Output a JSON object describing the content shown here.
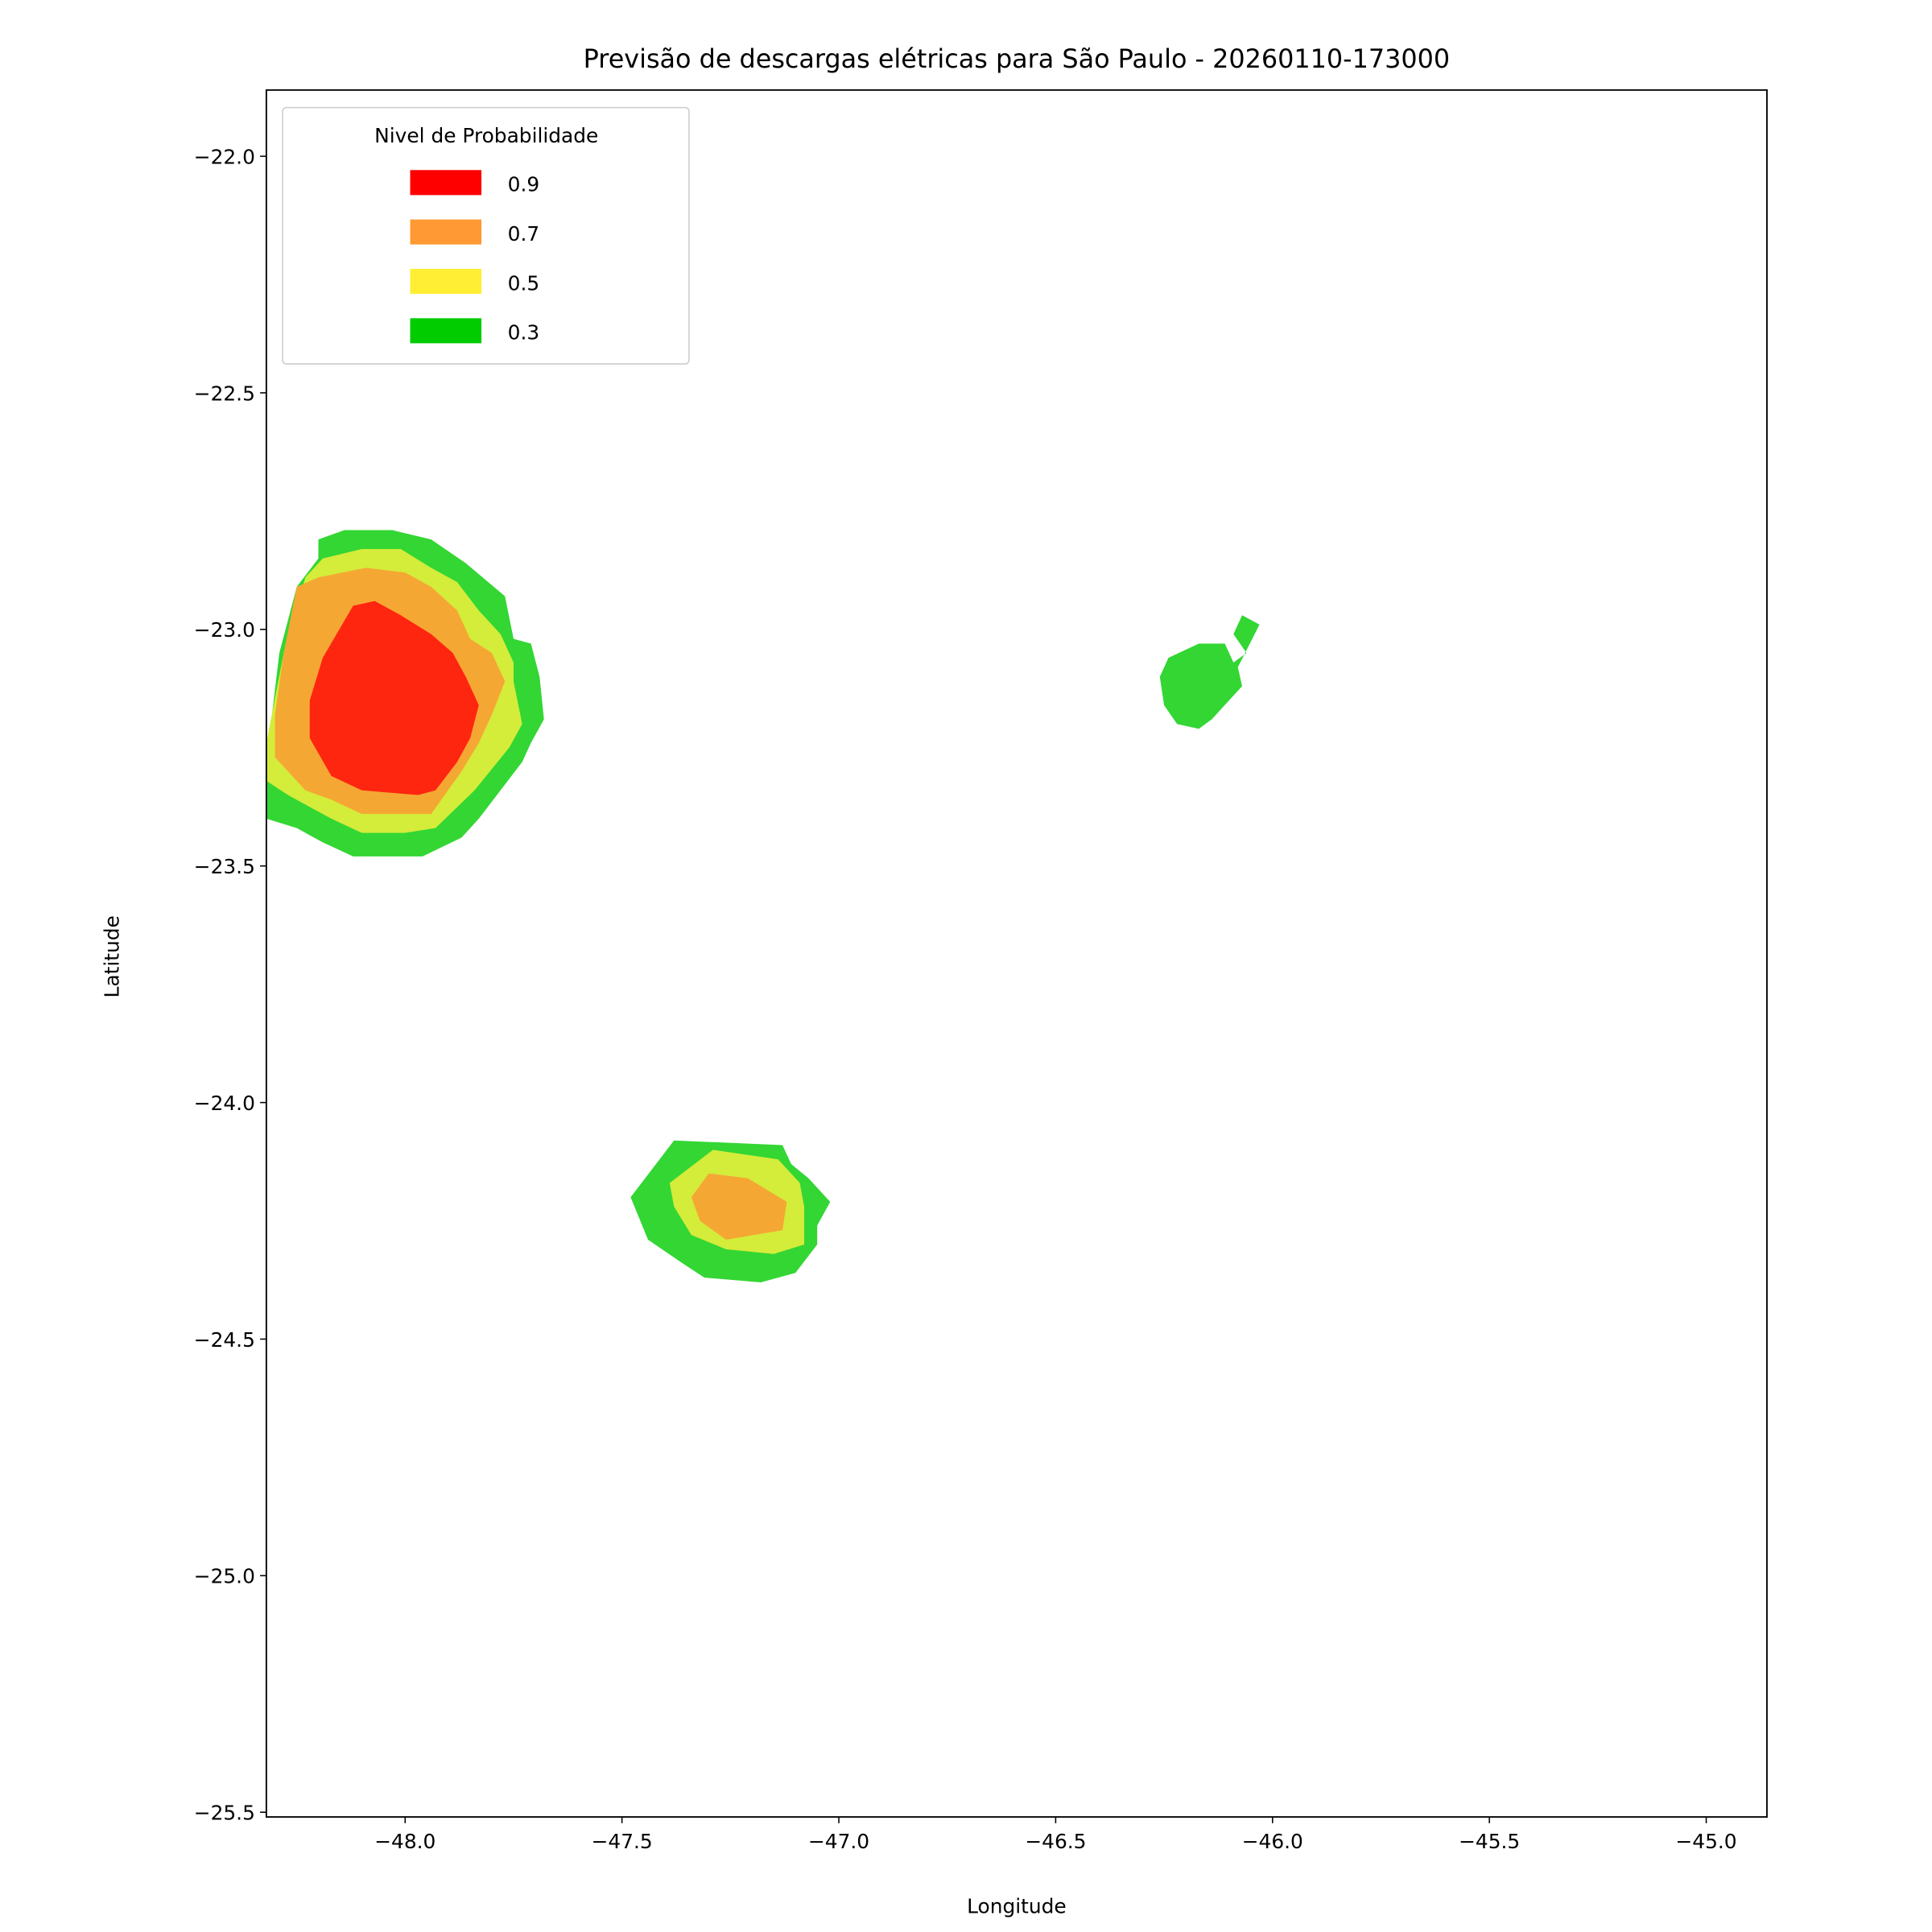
{
  "chart_data": {
    "type": "contour-filled",
    "title": "Previsão de descargas elétricas para São Paulo - 20260110-173000",
    "xlabel": "Longitude",
    "ylabel": "Latitude",
    "xlim": [
      -48.32,
      -44.86
    ],
    "ylim": [
      -25.51,
      -21.86
    ],
    "xticks": [
      -48.0,
      -47.5,
      -47.0,
      -46.5,
      -46.0,
      -45.5,
      -45.0
    ],
    "xtick_labels": [
      "−48.0",
      "−47.5",
      "−47.0",
      "−46.5",
      "−46.0",
      "−45.5",
      "−45.0"
    ],
    "yticks": [
      -22.0,
      -22.5,
      -23.0,
      -23.5,
      -24.0,
      -24.5,
      -25.0,
      -25.5
    ],
    "ytick_labels": [
      "−22.0",
      "−22.5",
      "−23.0",
      "−23.5",
      "−24.0",
      "−24.5",
      "−25.0",
      "−25.5"
    ],
    "grid": false,
    "legend": {
      "title": "Nivel de Probabilidade",
      "placement": "upper-left",
      "entries": [
        {
          "label": "0.9",
          "color": "#ff0000"
        },
        {
          "label": "0.7",
          "color": "#ff9933"
        },
        {
          "label": "0.5",
          "color": "#ffee33"
        },
        {
          "label": "0.3",
          "color": "#00cc00"
        }
      ]
    },
    "level_fill_colors": {
      "0.3": "#33d633",
      "0.5": "#d4ec3a",
      "0.7": "#f5a733",
      "0.9": "#ff2610"
    },
    "regions": [
      {
        "level": "0.3",
        "polygon": [
          [
            -48.2,
            -22.81
          ],
          [
            -48.14,
            -22.79
          ],
          [
            -48.03,
            -22.79
          ],
          [
            -47.94,
            -22.81
          ],
          [
            -47.86,
            -22.86
          ],
          [
            -47.77,
            -22.93
          ],
          [
            -47.75,
            -23.02
          ],
          [
            -47.71,
            -23.03
          ],
          [
            -47.69,
            -23.1
          ],
          [
            -47.68,
            -23.19
          ],
          [
            -47.71,
            -23.24
          ],
          [
            -47.73,
            -23.28
          ],
          [
            -47.83,
            -23.4
          ],
          [
            -47.87,
            -23.44
          ],
          [
            -47.96,
            -23.48
          ],
          [
            -48.12,
            -23.48
          ],
          [
            -48.19,
            -23.45
          ],
          [
            -48.25,
            -23.42
          ],
          [
            -48.32,
            -23.4
          ],
          [
            -48.32,
            -23.28
          ],
          [
            -48.29,
            -23.05
          ],
          [
            -48.25,
            -22.91
          ],
          [
            -48.2,
            -22.85
          ]
        ]
      },
      {
        "level": "0.5",
        "polygon": [
          [
            -48.23,
            -22.89
          ],
          [
            -48.19,
            -22.85
          ],
          [
            -48.1,
            -22.83
          ],
          [
            -48.01,
            -22.83
          ],
          [
            -47.94,
            -22.87
          ],
          [
            -47.88,
            -22.9
          ],
          [
            -47.83,
            -22.96
          ],
          [
            -47.78,
            -23.01
          ],
          [
            -47.75,
            -23.07
          ],
          [
            -47.75,
            -23.11
          ],
          [
            -47.73,
            -23.2
          ],
          [
            -47.76,
            -23.25
          ],
          [
            -47.84,
            -23.34
          ],
          [
            -47.93,
            -23.42
          ],
          [
            -48.0,
            -23.43
          ],
          [
            -48.1,
            -23.43
          ],
          [
            -48.17,
            -23.4
          ],
          [
            -48.27,
            -23.35
          ],
          [
            -48.32,
            -23.32
          ],
          [
            -48.32,
            -23.24
          ],
          [
            -48.28,
            -23.05
          ]
        ]
      },
      {
        "level": "0.7",
        "polygon": [
          [
            -48.25,
            -22.91
          ],
          [
            -48.2,
            -22.89
          ],
          [
            -48.09,
            -22.87
          ],
          [
            -48.0,
            -22.88
          ],
          [
            -47.94,
            -22.91
          ],
          [
            -47.88,
            -22.96
          ],
          [
            -47.85,
            -23.02
          ],
          [
            -47.8,
            -23.05
          ],
          [
            -47.77,
            -23.11
          ],
          [
            -47.8,
            -23.18
          ],
          [
            -47.83,
            -23.24
          ],
          [
            -47.87,
            -23.3
          ],
          [
            -47.94,
            -23.39
          ],
          [
            -48.1,
            -23.39
          ],
          [
            -48.17,
            -23.36
          ],
          [
            -48.23,
            -23.34
          ],
          [
            -48.3,
            -23.27
          ],
          [
            -48.3,
            -23.18
          ],
          [
            -48.28,
            -23.05
          ]
        ]
      },
      {
        "level": "0.9",
        "polygon": [
          [
            -48.19,
            -23.06
          ],
          [
            -48.12,
            -22.95
          ],
          [
            -48.07,
            -22.94
          ],
          [
            -48.01,
            -22.97
          ],
          [
            -47.94,
            -23.01
          ],
          [
            -47.89,
            -23.05
          ],
          [
            -47.86,
            -23.1
          ],
          [
            -47.83,
            -23.16
          ],
          [
            -47.85,
            -23.23
          ],
          [
            -47.88,
            -23.28
          ],
          [
            -47.93,
            -23.34
          ],
          [
            -47.97,
            -23.35
          ],
          [
            -48.1,
            -23.34
          ],
          [
            -48.17,
            -23.31
          ],
          [
            -48.22,
            -23.23
          ],
          [
            -48.22,
            -23.15
          ]
        ]
      },
      {
        "level": "0.3",
        "polygon": [
          [
            -47.48,
            -24.2
          ],
          [
            -47.38,
            -24.08
          ],
          [
            -47.13,
            -24.09
          ],
          [
            -47.11,
            -24.13
          ],
          [
            -47.07,
            -24.16
          ],
          [
            -47.02,
            -24.21
          ],
          [
            -47.05,
            -24.26
          ],
          [
            -47.05,
            -24.3
          ],
          [
            -47.1,
            -24.36
          ],
          [
            -47.18,
            -24.38
          ],
          [
            -47.31,
            -24.37
          ],
          [
            -47.36,
            -24.34
          ],
          [
            -47.44,
            -24.29
          ]
        ]
      },
      {
        "level": "0.5",
        "polygon": [
          [
            -47.39,
            -24.17
          ],
          [
            -47.29,
            -24.1
          ],
          [
            -47.14,
            -24.12
          ],
          [
            -47.09,
            -24.17
          ],
          [
            -47.08,
            -24.22
          ],
          [
            -47.08,
            -24.3
          ],
          [
            -47.15,
            -24.32
          ],
          [
            -47.26,
            -24.31
          ],
          [
            -47.34,
            -24.28
          ],
          [
            -47.38,
            -24.22
          ]
        ]
      },
      {
        "level": "0.7",
        "polygon": [
          [
            -47.34,
            -24.2
          ],
          [
            -47.3,
            -24.15
          ],
          [
            -47.21,
            -24.16
          ],
          [
            -47.12,
            -24.21
          ],
          [
            -47.13,
            -24.27
          ],
          [
            -47.26,
            -24.29
          ],
          [
            -47.32,
            -24.25
          ]
        ]
      },
      {
        "level": "0.3",
        "polygon": [
          [
            -46.26,
            -23.1
          ],
          [
            -46.24,
            -23.06
          ],
          [
            -46.17,
            -23.03
          ],
          [
            -46.11,
            -23.03
          ],
          [
            -46.09,
            -23.07
          ],
          [
            -46.06,
            -23.05
          ],
          [
            -46.09,
            -23.01
          ],
          [
            -46.07,
            -22.97
          ],
          [
            -46.03,
            -22.99
          ],
          [
            -46.08,
            -23.08
          ],
          [
            -46.07,
            -23.12
          ],
          [
            -46.14,
            -23.19
          ],
          [
            -46.17,
            -23.21
          ],
          [
            -46.22,
            -23.2
          ],
          [
            -46.25,
            -23.16
          ]
        ]
      }
    ]
  }
}
